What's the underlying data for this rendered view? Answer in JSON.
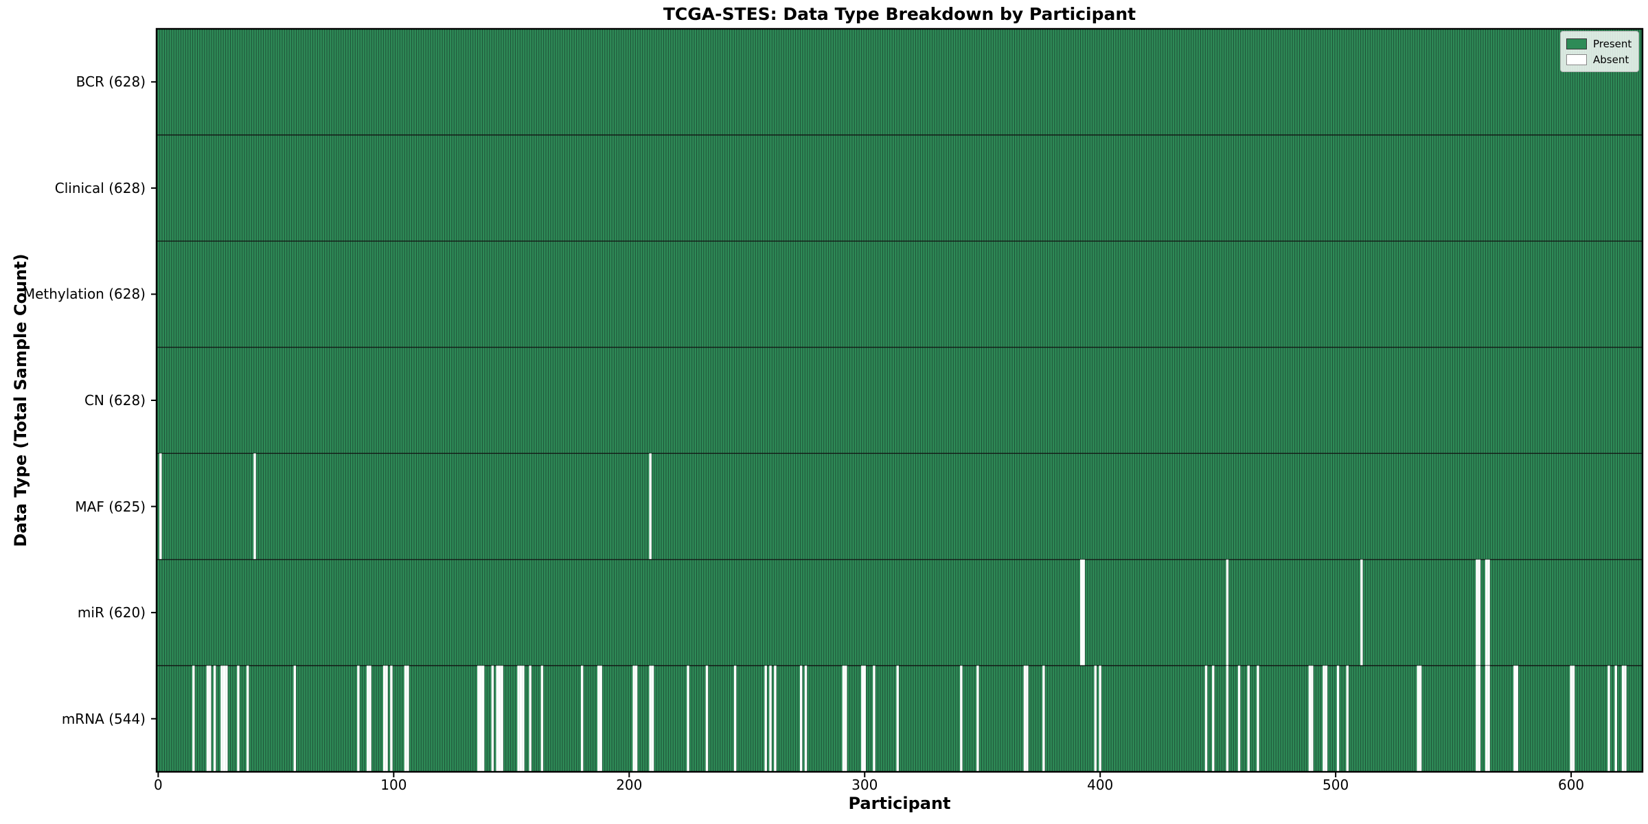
{
  "chart_data": {
    "type": "heatmap",
    "title": "TCGA-STES: Data Type Breakdown by Participant",
    "xlabel": "Participant",
    "ylabel": "Data Type (Total Sample Count)",
    "x_ticks": [
      0,
      100,
      200,
      300,
      400,
      500,
      600
    ],
    "n_participants": 628,
    "x_range": [
      0,
      628
    ],
    "grid": false,
    "legend_position": "upper right",
    "legend": [
      {
        "label": "Present",
        "color": "#2e8b57"
      },
      {
        "label": "Absent",
        "color": "#ffffff"
      }
    ],
    "colors": {
      "present": "#2e8b57",
      "absent": "#ffffff",
      "bar_edge": "#1b4631",
      "row_divider": "#111111",
      "spine": "#000000"
    },
    "rows": [
      {
        "label": "BCR (628)",
        "name": "BCR",
        "total": 628,
        "absent": []
      },
      {
        "label": "Clinical (628)",
        "name": "Clinical",
        "total": 628,
        "absent": []
      },
      {
        "label": "Methylation (628)",
        "name": "Methylation",
        "total": 628,
        "absent": []
      },
      {
        "label": "CN (628)",
        "name": "CN",
        "total": 628,
        "absent": []
      },
      {
        "label": "MAF (625)",
        "name": "MAF",
        "total": 625,
        "absent": [
          1,
          41,
          209
        ]
      },
      {
        "label": "miR (620)",
        "name": "miR",
        "total": 620,
        "absent": [
          392,
          393,
          454,
          511,
          560,
          561,
          564,
          565
        ]
      },
      {
        "label": "mRNA (544)",
        "name": "mRNA",
        "total": 544,
        "absent": [
          15,
          21,
          22,
          24,
          27,
          28,
          29,
          34,
          38,
          58,
          85,
          89,
          90,
          96,
          97,
          99,
          105,
          106,
          136,
          137,
          138,
          142,
          144,
          145,
          146,
          153,
          154,
          155,
          158,
          163,
          180,
          187,
          188,
          202,
          203,
          209,
          210,
          225,
          233,
          245,
          258,
          260,
          262,
          273,
          275,
          291,
          292,
          299,
          300,
          304,
          314,
          341,
          348,
          368,
          369,
          376,
          398,
          400,
          445,
          448,
          454,
          459,
          463,
          467,
          489,
          490,
          495,
          496,
          501,
          505,
          535,
          536,
          560,
          561,
          564,
          565,
          576,
          577,
          600,
          601,
          616,
          619,
          622,
          623
        ]
      }
    ]
  }
}
